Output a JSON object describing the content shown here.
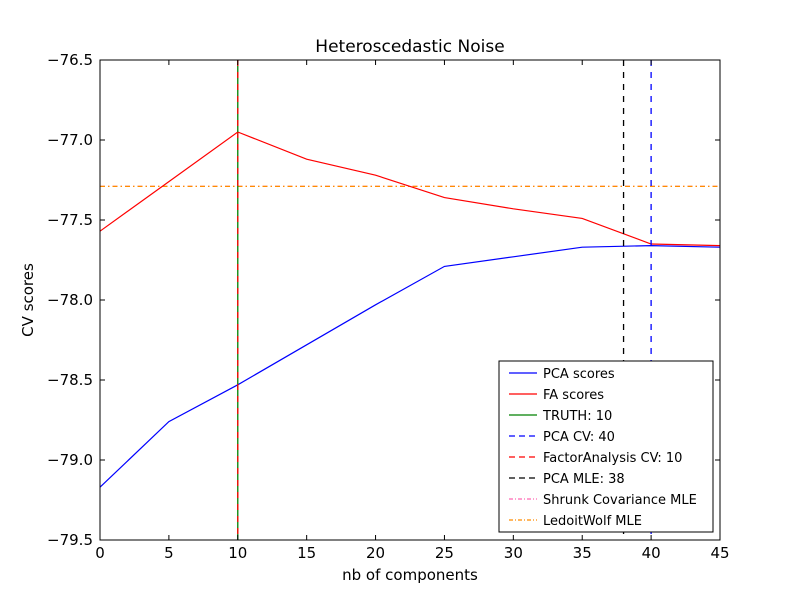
{
  "chart_data": {
    "type": "line",
    "title": "Heteroscedastic Noise",
    "xlabel": "nb of components",
    "ylabel": "CV scores",
    "xlim": [
      0,
      45
    ],
    "ylim": [
      -79.5,
      -76.5
    ],
    "xticks": [
      0,
      5,
      10,
      15,
      20,
      25,
      30,
      35,
      40,
      45
    ],
    "yticks": [
      -76.5,
      -77.0,
      -77.5,
      -78.0,
      -78.5,
      -79.0,
      -79.5
    ],
    "xtick_labels": [
      "0",
      "5",
      "10",
      "15",
      "20",
      "25",
      "30",
      "35",
      "40",
      "45"
    ],
    "ytick_labels": [
      "−76.5",
      "−77.0",
      "−77.5",
      "−78.0",
      "−78.5",
      "−79.0",
      "−79.5"
    ],
    "x": [
      0,
      5,
      10,
      15,
      20,
      25,
      30,
      35,
      40,
      45
    ],
    "series": [
      {
        "name": "PCA scores",
        "color": "#0000ff",
        "style": "solid",
        "values": [
          -79.17,
          -78.76,
          -78.53,
          -78.28,
          -78.03,
          -77.79,
          -77.73,
          -77.67,
          -77.66,
          -77.67
        ]
      },
      {
        "name": "FA scores",
        "color": "#ff0000",
        "style": "solid",
        "values": [
          -77.57,
          -77.26,
          -76.95,
          -77.12,
          -77.22,
          -77.36,
          -77.43,
          -77.49,
          -77.65,
          -77.66
        ]
      }
    ],
    "vlines": [
      {
        "name": "TRUTH: 10",
        "x": 10,
        "color": "#008000",
        "style": "solid"
      },
      {
        "name": "PCA CV: 40",
        "x": 40,
        "color": "#0000ff",
        "style": "dashed"
      },
      {
        "name": "FactorAnalysis CV: 10",
        "x": 10,
        "color": "#ff0000",
        "style": "dashed"
      },
      {
        "name": "PCA MLE: 38",
        "x": 38,
        "color": "#000000",
        "style": "dashed"
      }
    ],
    "hlines": [
      {
        "name": "Shrunk Covariance MLE",
        "y": -77.29,
        "color": "#ff69b4",
        "style": "dashdot"
      },
      {
        "name": "LedoitWolf MLE",
        "y": -77.29,
        "color": "#ff8c00",
        "style": "dashdot"
      }
    ],
    "legend": {
      "position": "lower-right",
      "entries": [
        "PCA scores",
        "FA scores",
        "TRUTH: 10",
        "PCA CV: 40",
        "FactorAnalysis CV: 10",
        "PCA MLE: 38",
        "Shrunk Covariance MLE",
        "LedoitWolf MLE"
      ]
    }
  }
}
